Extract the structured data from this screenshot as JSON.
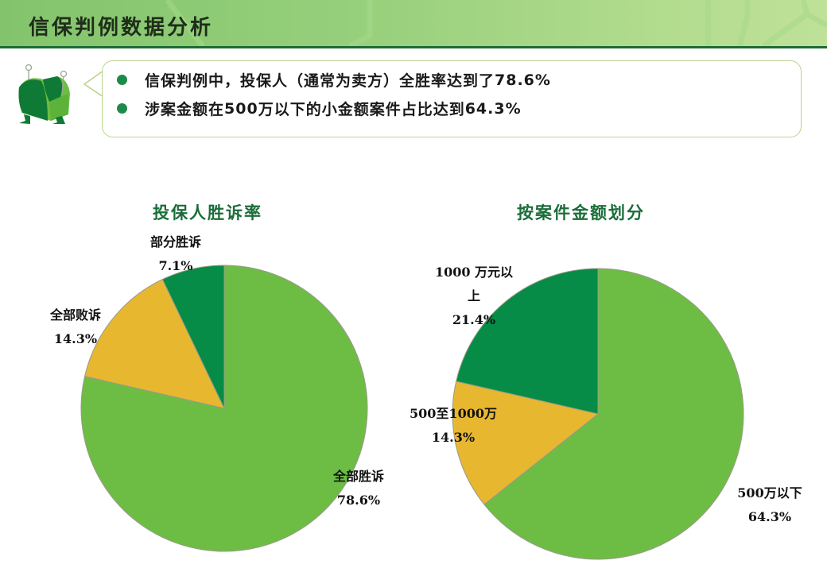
{
  "header": {
    "title": "信保判例数据分析"
  },
  "summary": {
    "bullets": [
      {
        "text_a": "信保判例中，投保人（通常为卖方）全胜率达到了",
        "num": "78.6%"
      },
      {
        "text_a": "涉案金额在",
        "num_a": "500",
        "text_b": "万以下的小金额案件占比达到",
        "num": "64.3%"
      }
    ]
  },
  "colors": {
    "green_dark": "#068c46",
    "green_light": "#6dbd45",
    "yellow": "#e8b730",
    "title_green": "#1b6d3a",
    "header_rule": "#1c6b37"
  },
  "chart_data": [
    {
      "type": "pie",
      "title": "投保人胜诉率",
      "categories": [
        "全部胜诉",
        "全部败诉",
        "部分胜诉"
      ],
      "values": [
        78.6,
        14.3,
        7.1
      ],
      "labels": [
        "全部胜诉 78.6%",
        "全部败诉 14.3%",
        "部分胜诉 7.1%"
      ],
      "colors": [
        "#6dbd45",
        "#e8b730",
        "#068c46"
      ],
      "start_angle": "12 o'clock, clockwise",
      "legend": "none (data labels)"
    },
    {
      "type": "pie",
      "title": "按案件金额划分",
      "categories": [
        "500万以下",
        "500至1000万",
        "1000万元以上"
      ],
      "values": [
        64.3,
        14.3,
        21.4
      ],
      "labels": [
        "500万以下 64.3%",
        "500至1000万 14.3%",
        "1000万元以上 21.4%"
      ],
      "colors": [
        "#6dbd45",
        "#e8b730",
        "#068c46"
      ],
      "start_angle": "12 o'clock, clockwise",
      "legend": "none (data labels)"
    }
  ],
  "labels": {
    "left": {
      "partial_name": "部分胜诉",
      "partial_pct": "7.1%",
      "lose_name": "全部败诉",
      "lose_pct": "14.3%",
      "win_name": "全部胜诉",
      "win_pct": "78.6%"
    },
    "right": {
      "big_name_1": "1000 万元以",
      "big_name_2": "上",
      "big_pct": "21.4%",
      "mid_name": "500至1000万",
      "mid_pct": "14.3%",
      "small_name": "500万以下",
      "small_pct": "64.3%"
    }
  }
}
